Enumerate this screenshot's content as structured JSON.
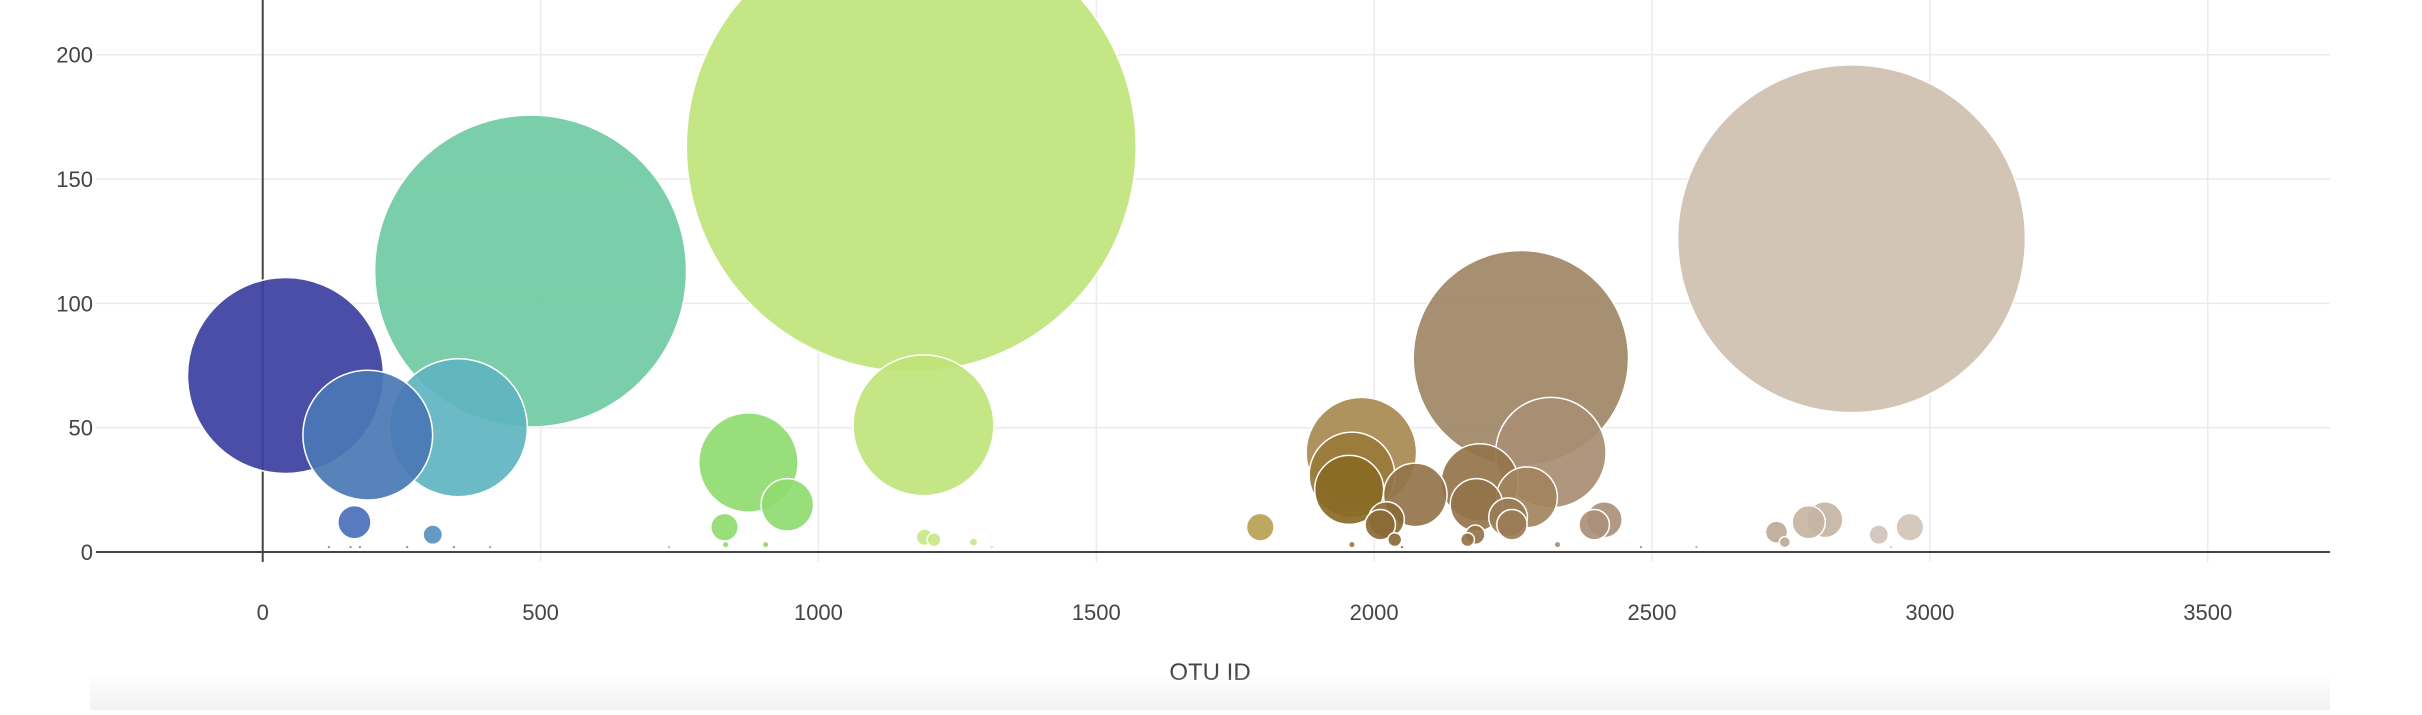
{
  "chart_data": {
    "type": "scatter",
    "title": "",
    "xlabel": "OTU ID",
    "ylabel": "",
    "xlim": [
      -300,
      3720
    ],
    "ylim": [
      -4,
      222
    ],
    "x_ticks": [
      0,
      500,
      1000,
      1500,
      2000,
      2500,
      3000,
      3500
    ],
    "y_ticks": [
      0,
      50,
      100,
      150,
      200
    ],
    "grid": true,
    "legend": "none",
    "points": [
      {
        "x": 41,
        "y": 71,
        "size": 71,
        "color": "#3b3f9e"
      },
      {
        "x": 189,
        "y": 47,
        "size": 47,
        "color": "#4a77b4"
      },
      {
        "x": 165,
        "y": 12,
        "size": 12,
        "color": "#4a6fb8"
      },
      {
        "x": 306,
        "y": 7,
        "size": 7,
        "color": "#5a90c0"
      },
      {
        "x": 352,
        "y": 50,
        "size": 50,
        "color": "#5fb4c0"
      },
      {
        "x": 482,
        "y": 113,
        "size": 113,
        "color": "#6fcaa2"
      },
      {
        "x": 831,
        "y": 10,
        "size": 10,
        "color": "#8fdb70"
      },
      {
        "x": 874,
        "y": 36,
        "size": 36,
        "color": "#8fdb70"
      },
      {
        "x": 944,
        "y": 19,
        "size": 19,
        "color": "#8fdb70"
      },
      {
        "x": 1167,
        "y": 163,
        "size": 163,
        "color": "#c0e47a"
      },
      {
        "x": 1189,
        "y": 51,
        "size": 51,
        "color": "#c0e47a"
      },
      {
        "x": 1191,
        "y": 6,
        "size": 6,
        "color": "#c8e888"
      },
      {
        "x": 1208,
        "y": 5,
        "size": 5,
        "color": "#c8e888"
      },
      {
        "x": 1795,
        "y": 10,
        "size": 10,
        "color": "#b8a050"
      },
      {
        "x": 1977,
        "y": 40,
        "size": 40,
        "color": "#a88a50"
      },
      {
        "x": 1960,
        "y": 31,
        "size": 31,
        "color": "#9a7a3a"
      },
      {
        "x": 1955,
        "y": 25,
        "size": 25,
        "color": "#8a6a26"
      },
      {
        "x": 2022,
        "y": 13,
        "size": 13,
        "color": "#8a6a36"
      },
      {
        "x": 2011,
        "y": 11,
        "size": 11,
        "color": "#8a6a36"
      },
      {
        "x": 2037,
        "y": 5,
        "size": 5,
        "color": "#8a6a36"
      },
      {
        "x": 2074,
        "y": 23,
        "size": 23,
        "color": "#94744a"
      },
      {
        "x": 2190,
        "y": 28,
        "size": 28,
        "color": "#94744a"
      },
      {
        "x": 2184,
        "y": 19,
        "size": 19,
        "color": "#94744a"
      },
      {
        "x": 2182,
        "y": 7,
        "size": 7,
        "color": "#94744a"
      },
      {
        "x": 2168,
        "y": 5,
        "size": 5,
        "color": "#94744a"
      },
      {
        "x": 2275,
        "y": 22,
        "size": 22,
        "color": "#a2845e"
      },
      {
        "x": 2241,
        "y": 14,
        "size": 14,
        "color": "#9a7c56"
      },
      {
        "x": 2248,
        "y": 11,
        "size": 11,
        "color": "#9a7c56"
      },
      {
        "x": 2264,
        "y": 78,
        "size": 78,
        "color": "#a08566"
      },
      {
        "x": 2318,
        "y": 40,
        "size": 40,
        "color": "#a88e72"
      },
      {
        "x": 2414,
        "y": 13,
        "size": 13,
        "color": "#aa9078"
      },
      {
        "x": 2396,
        "y": 11,
        "size": 11,
        "color": "#aa9078"
      },
      {
        "x": 2724,
        "y": 8,
        "size": 8,
        "color": "#bcaa96"
      },
      {
        "x": 2739,
        "y": 4,
        "size": 4,
        "color": "#bcaa96"
      },
      {
        "x": 2782,
        "y": 12,
        "size": 12,
        "color": "#c4b4a2"
      },
      {
        "x": 2811,
        "y": 13,
        "size": 13,
        "color": "#c4b4a2"
      },
      {
        "x": 2859,
        "y": 126,
        "size": 126,
        "color": "#cec0b0"
      },
      {
        "x": 2908,
        "y": 7,
        "size": 7,
        "color": "#d0c4b6"
      },
      {
        "x": 2964,
        "y": 10,
        "size": 10,
        "color": "#d0c4b6"
      },
      {
        "x": 119,
        "y": 2,
        "size": 1,
        "color": "#6f8fa0"
      },
      {
        "x": 158,
        "y": 2,
        "size": 1,
        "color": "#6f8fa0"
      },
      {
        "x": 175,
        "y": 2,
        "size": 1,
        "color": "#6f8fa0"
      },
      {
        "x": 260,
        "y": 2,
        "size": 1,
        "color": "#6f8fa0"
      },
      {
        "x": 344,
        "y": 2,
        "size": 1,
        "color": "#6f8fa0"
      },
      {
        "x": 409,
        "y": 2,
        "size": 1,
        "color": "#7faaa0"
      },
      {
        "x": 731,
        "y": 2,
        "size": 1,
        "color": "#9fcf90"
      },
      {
        "x": 833,
        "y": 3,
        "size": 2,
        "color": "#8fdb70"
      },
      {
        "x": 905,
        "y": 3,
        "size": 2,
        "color": "#a0d070"
      },
      {
        "x": 1279,
        "y": 4,
        "size": 3,
        "color": "#c8e888"
      },
      {
        "x": 1312,
        "y": 2,
        "size": 1,
        "color": "#c8e888"
      },
      {
        "x": 1960,
        "y": 3,
        "size": 2,
        "color": "#9a7a3a"
      },
      {
        "x": 2050,
        "y": 2,
        "size": 1,
        "color": "#8a6a36"
      },
      {
        "x": 2330,
        "y": 3,
        "size": 2,
        "color": "#a88e72"
      },
      {
        "x": 2480,
        "y": 2,
        "size": 1,
        "color": "#aa9078"
      },
      {
        "x": 2580,
        "y": 2,
        "size": 1,
        "color": "#b8a890"
      },
      {
        "x": 2930,
        "y": 2,
        "size": 1,
        "color": "#d0c4b6"
      }
    ]
  }
}
